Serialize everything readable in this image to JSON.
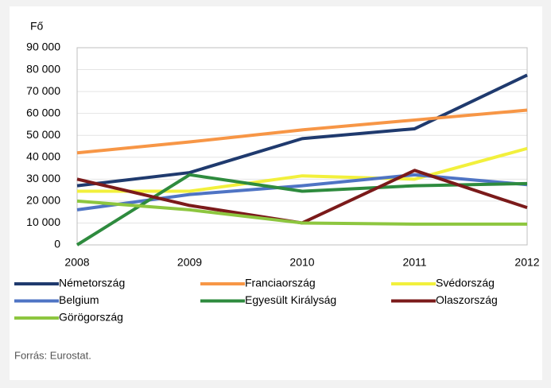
{
  "chart_data": {
    "type": "line",
    "y_axis_label": "Fő",
    "categories": [
      "2008",
      "2009",
      "2010",
      "2011",
      "2012"
    ],
    "series": [
      {
        "name": "Németország",
        "color": "#1f3a6e",
        "values": [
          27000,
          33000,
          48500,
          53000,
          77500
        ]
      },
      {
        "name": "Franciaország",
        "color": "#f79646",
        "values": [
          42000,
          47000,
          52500,
          57000,
          61500
        ]
      },
      {
        "name": "Svédország",
        "color": "#f2f03c",
        "values": [
          24500,
          24500,
          31500,
          30000,
          44000
        ]
      },
      {
        "name": "Belgium",
        "color": "#4f74c4",
        "values": [
          16000,
          23000,
          27000,
          32000,
          27500
        ]
      },
      {
        "name": "Egyesült Királyság",
        "color": "#2e8b3e",
        "values": [
          0,
          32000,
          24500,
          27000,
          28000
        ]
      },
      {
        "name": "Olaszország",
        "color": "#7b1a1a",
        "values": [
          30000,
          18000,
          10000,
          34000,
          17000
        ]
      },
      {
        "name": "Görögország",
        "color": "#8dc63f",
        "values": [
          20000,
          16000,
          10000,
          9500,
          9500
        ]
      }
    ],
    "ylim": [
      0,
      90000
    ],
    "yticks": [
      0,
      {
        "value": 10000,
        "label": "10 000"
      },
      {
        "value": 20000,
        "label": "20 000"
      },
      {
        "value": 30000,
        "label": "30 000"
      },
      {
        "value": 40000,
        "label": "40 000"
      },
      {
        "value": 50000,
        "label": "50 000"
      },
      {
        "value": 60000,
        "label": "60 000"
      },
      {
        "value": 70000,
        "label": "70 000"
      },
      {
        "value": 80000,
        "label": "80 000"
      },
      {
        "value": 90000,
        "label": "90 000"
      }
    ],
    "grid": true,
    "source": "Forrás: Eurostat."
  }
}
